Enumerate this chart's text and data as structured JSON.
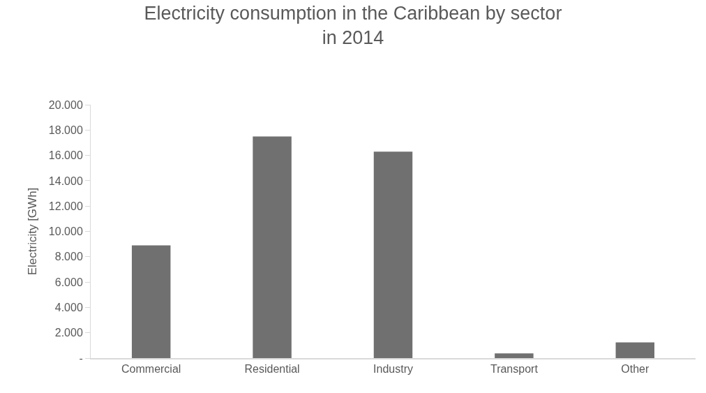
{
  "chart_data": {
    "type": "bar",
    "title": "Electricity consumption in the Caribbean by sector\nin 2014",
    "ylabel": "Electricity [GWh]",
    "categories": [
      "Commercial",
      "Residential",
      "Industry",
      "Transport",
      "Other"
    ],
    "values": [
      8900,
      17500,
      16300,
      370,
      1240
    ],
    "color": "#707070",
    "ylim": [
      0,
      20000
    ],
    "yticks": [
      {
        "value": 0,
        "label": "-"
      },
      {
        "value": 2000,
        "label": "2.000"
      },
      {
        "value": 4000,
        "label": "4.000"
      },
      {
        "value": 6000,
        "label": "6.000"
      },
      {
        "value": 8000,
        "label": "8.000"
      },
      {
        "value": 10000,
        "label": "10.000"
      },
      {
        "value": 12000,
        "label": "12.000"
      },
      {
        "value": 14000,
        "label": "14.000"
      },
      {
        "value": 16000,
        "label": "16.000"
      },
      {
        "value": 18000,
        "label": "18.000"
      },
      {
        "value": 20000,
        "label": "20.000"
      }
    ],
    "grid": false
  }
}
